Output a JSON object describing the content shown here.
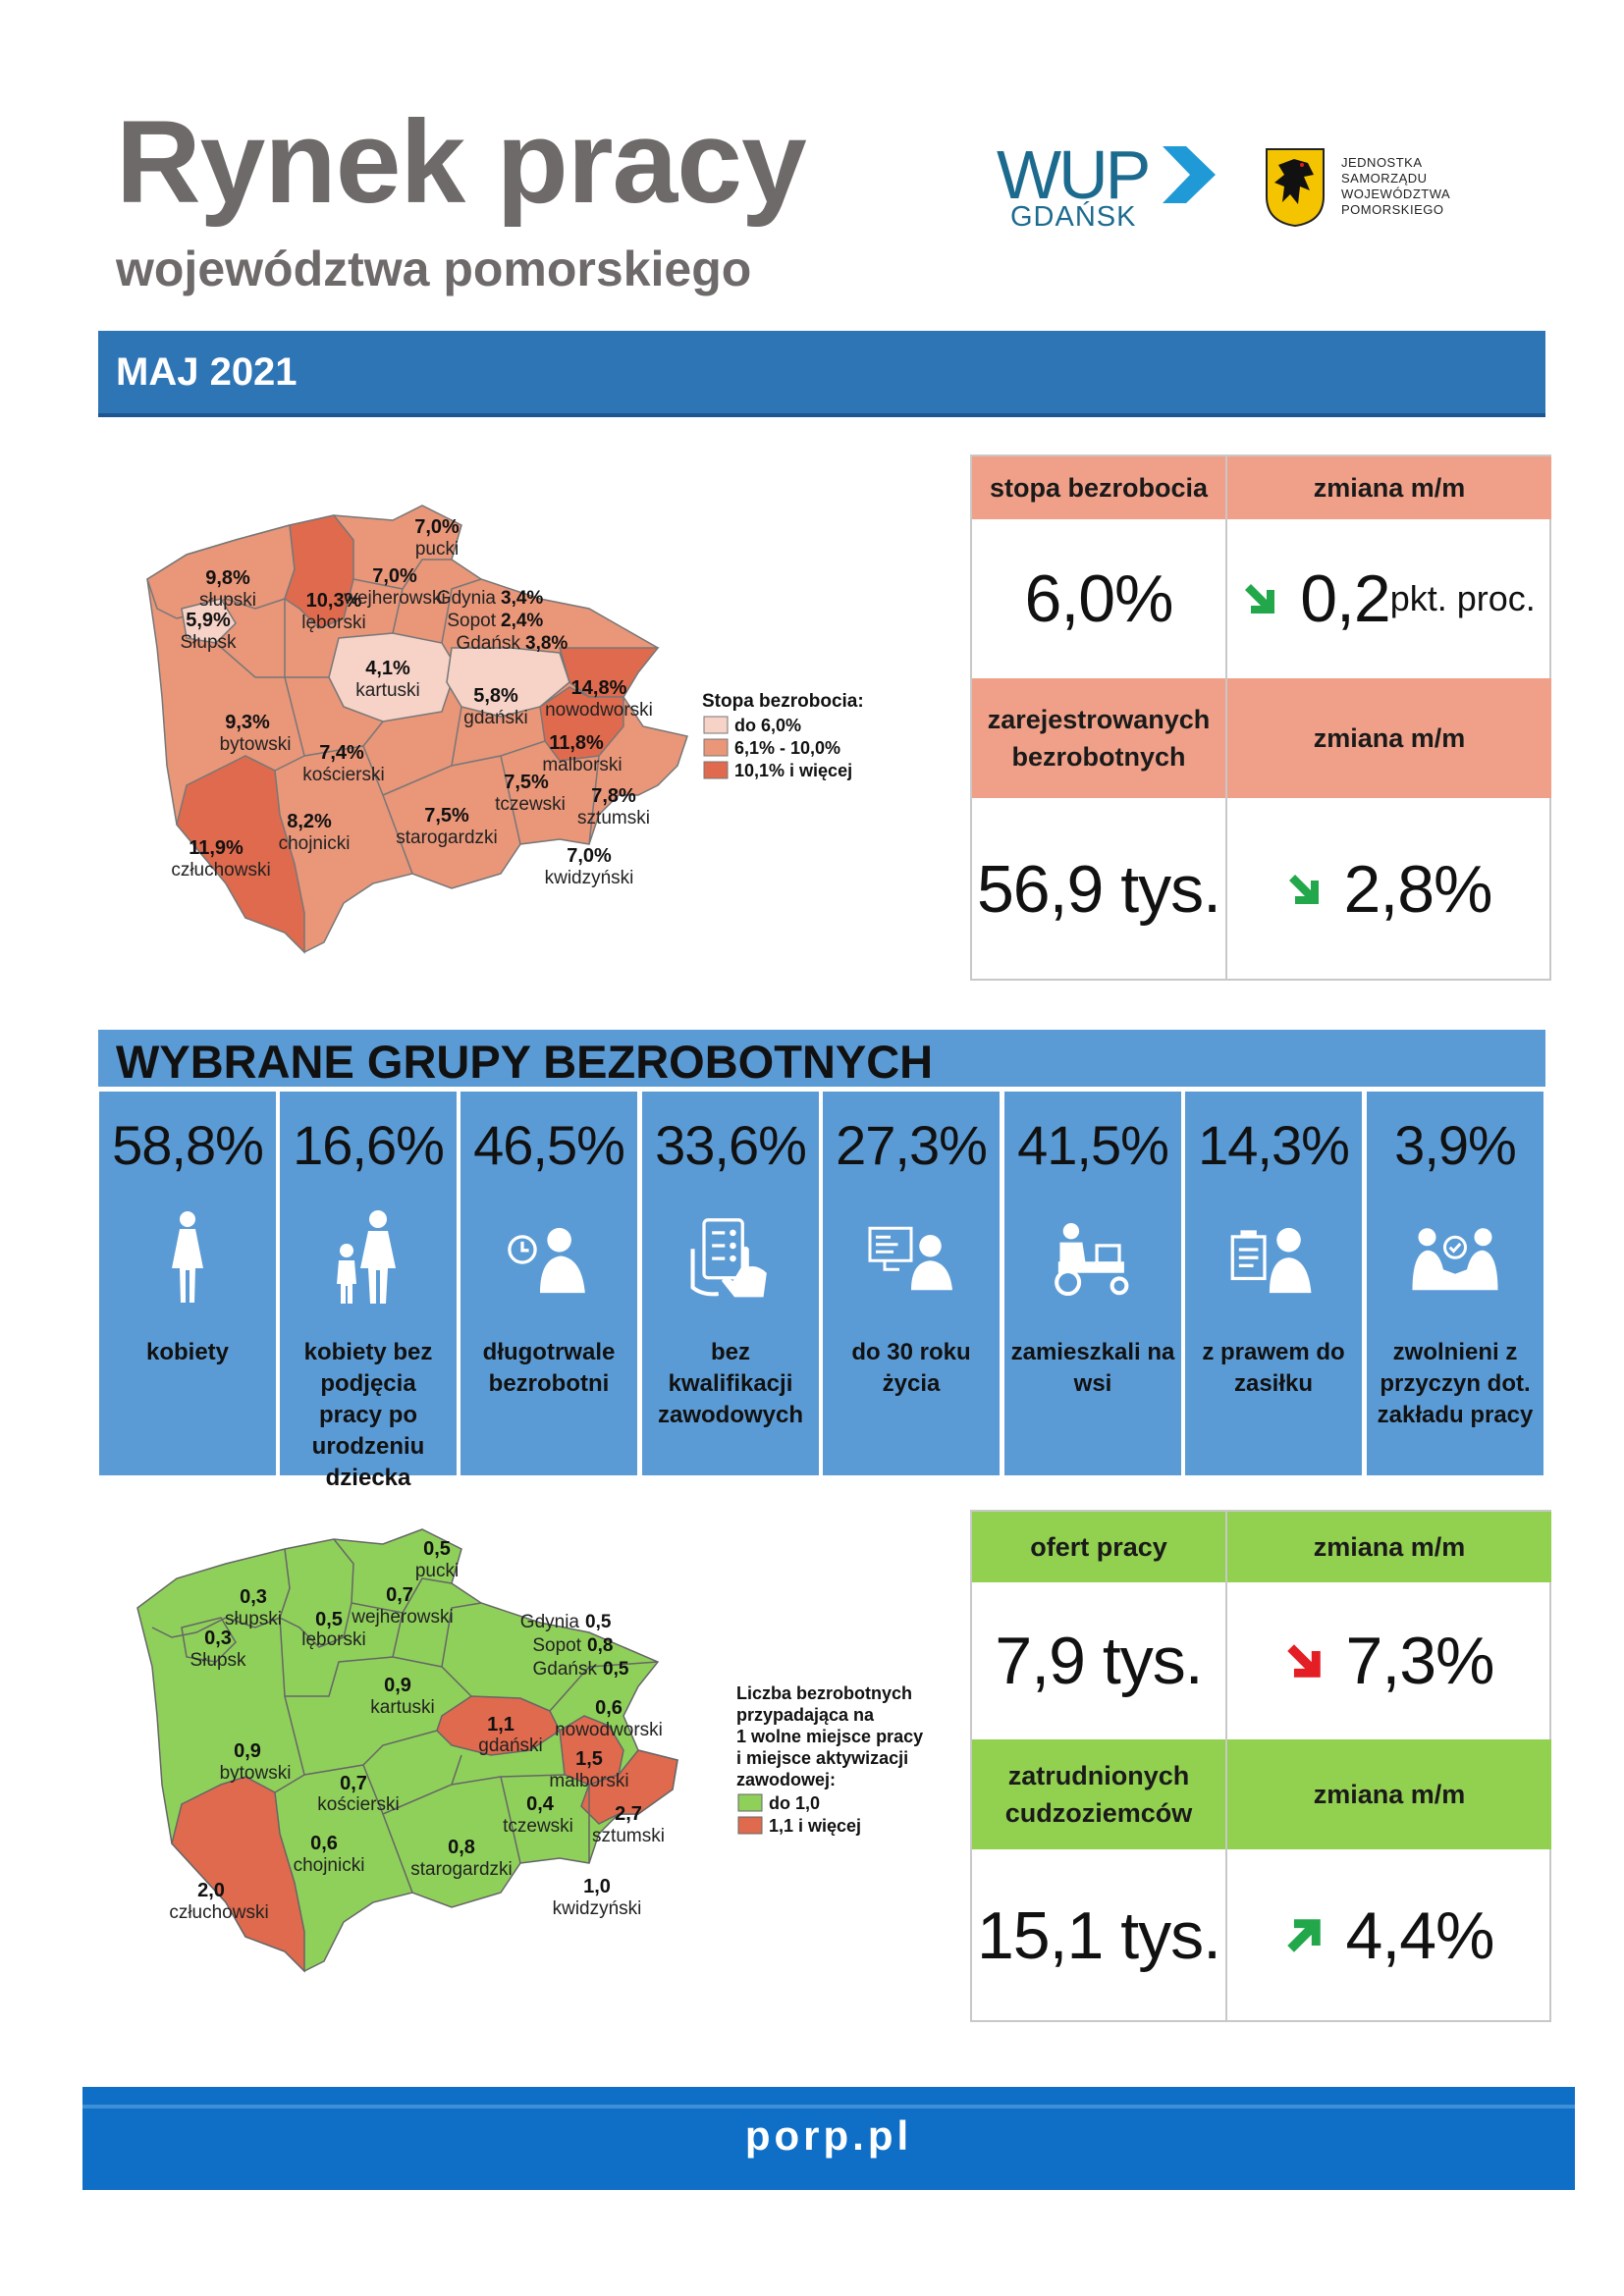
{
  "header": {
    "title": "Rynek pracy",
    "subtitle": "województwa pomorskiego",
    "logo_wup": "WUP",
    "logo_wup_city": "GDAŃSK",
    "logo_jsw_lines": [
      "JEDNOSTKA",
      "SAMORZĄDU",
      "WOJEWÓDZTWA",
      "POMORSKIEGO"
    ]
  },
  "month": "MAJ 2021",
  "top_table": {
    "h1": "stopa bezrobocia",
    "h2": "zmiana m/m",
    "rate": "6,0%",
    "rate_change": "0,2",
    "rate_change_unit": "pkt. proc.",
    "h3": "zarejestrowanych bezrobotnych",
    "h4": "zmiana m/m",
    "registered": "56,9 tys.",
    "registered_change": "2,8%",
    "header_color": "#f0a088",
    "arrow_down_color": "#22a84a"
  },
  "map1": {
    "legend_title": "Stopa bezrobocia:",
    "legend": [
      "do 6,0%",
      "6,1% - 10,0%",
      "10,1% i więcej"
    ],
    "colors": [
      "#f6d2c7",
      "#e99679",
      "#e06a4d"
    ],
    "regions": [
      {
        "value": "9,8%",
        "name": "słupski"
      },
      {
        "value": "5,9%",
        "name": "Słupsk"
      },
      {
        "value": "10,3%",
        "name": "lęborski"
      },
      {
        "value": "7,0%",
        "name": "wejherowski"
      },
      {
        "value": "7,0%",
        "name": "pucki"
      },
      {
        "value": "4,1%",
        "name": "kartuski"
      },
      {
        "value": "5,8%",
        "name": "gdański"
      },
      {
        "value": "14,8%",
        "name": "nowodworski"
      },
      {
        "value": "9,3%",
        "name": "bytowski"
      },
      {
        "value": "7,4%",
        "name": "kościerski"
      },
      {
        "value": "11,8%",
        "name": "malborski"
      },
      {
        "value": "7,5%",
        "name": "tczewski"
      },
      {
        "value": "7,8%",
        "name": "sztumski"
      },
      {
        "value": "8,2%",
        "name": "chojnicki"
      },
      {
        "value": "7,5%",
        "name": "starogardzki"
      },
      {
        "value": "11,9%",
        "name": "człuchowski"
      },
      {
        "value": "7,0%",
        "name": "kwidzyński"
      }
    ],
    "cities": [
      {
        "name": "Gdynia",
        "value": "3,4%"
      },
      {
        "name": "Sopot",
        "value": "2,4%"
      },
      {
        "name": "Gdańsk",
        "value": "3,8%"
      }
    ]
  },
  "groups_title": "WYBRANE GRUPY BEZROBOTNYCH",
  "groups": [
    {
      "pct": "58,8%",
      "label": "kobiety",
      "icon": "woman-icon"
    },
    {
      "pct": "16,6%",
      "label": "kobiety bez podjęcia pracy po urodzeniu dziecka",
      "icon": "mother-child-icon"
    },
    {
      "pct": "46,5%",
      "label": "długotrwale bezrobotni",
      "icon": "clock-person-icon"
    },
    {
      "pct": "33,6%",
      "label": "bez kwalifikacji zawodowych",
      "icon": "hand-checklist-icon"
    },
    {
      "pct": "27,3%",
      "label": "do 30 roku życia",
      "icon": "young-person-computer-icon"
    },
    {
      "pct": "41,5%",
      "label": "zamieszkali na wsi",
      "icon": "farmer-tractor-icon"
    },
    {
      "pct": "14,3%",
      "label": "z prawem do zasiłku",
      "icon": "person-document-icon"
    },
    {
      "pct": "3,9%",
      "label": "zwolnieni z przyczyn dot. zakładu pracy",
      "icon": "handshake-icon"
    }
  ],
  "map2": {
    "legend_title": [
      "Liczba bezrobotnych",
      "przypadająca na",
      "1 wolne miejsce pracy",
      "i miejsce aktywizacji",
      "zawodowej:"
    ],
    "legend": [
      "do 1,0",
      "1,1 i więcej"
    ],
    "colors": [
      "#8fd05a",
      "#e06a4d"
    ],
    "regions": [
      {
        "value": "0,3",
        "name": "słupski"
      },
      {
        "value": "0,3",
        "name": "Słupsk"
      },
      {
        "value": "0,5",
        "name": "lęborski"
      },
      {
        "value": "0,7",
        "name": "wejherowski"
      },
      {
        "value": "0,5",
        "name": "pucki"
      },
      {
        "value": "0,9",
        "name": "kartuski"
      },
      {
        "value": "1,1",
        "name": "gdański"
      },
      {
        "value": "0,6",
        "name": "nowodworski"
      },
      {
        "value": "0,9",
        "name": "bytowski"
      },
      {
        "value": "0,7",
        "name": "kościerski"
      },
      {
        "value": "1,5",
        "name": "malborski"
      },
      {
        "value": "0,4",
        "name": "tczewski"
      },
      {
        "value": "2,7",
        "name": "sztumski"
      },
      {
        "value": "0,6",
        "name": "chojnicki"
      },
      {
        "value": "0,8",
        "name": "starogardzki"
      },
      {
        "value": "2,0",
        "name": "człuchowski"
      },
      {
        "value": "1,0",
        "name": "kwidzyński"
      }
    ],
    "cities": [
      {
        "name": "Gdynia",
        "value": "0,5"
      },
      {
        "name": "Sopot",
        "value": "0,8"
      },
      {
        "name": "Gdańsk",
        "value": "0,5"
      }
    ]
  },
  "bottom_table": {
    "h1": "ofert pracy",
    "h2": "zmiana m/m",
    "offers": "7,9 tys.",
    "offers_change": "7,3%",
    "h3": "zatrudnionych cudzoziemców",
    "h4": "zmiana m/m",
    "foreigners": "15,1 tys.",
    "foreigners_change": "4,4%",
    "header_color": "#92d050",
    "arrow_red_color": "#e31e24",
    "arrow_up_color": "#22a84a"
  },
  "footer": "porp.pl"
}
